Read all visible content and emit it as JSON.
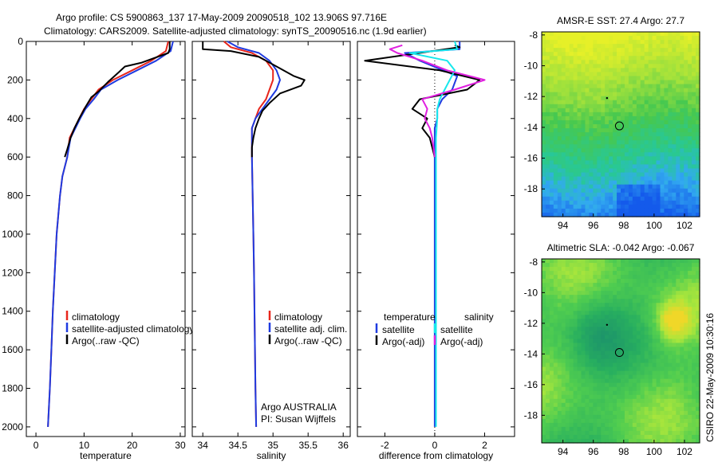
{
  "header": {
    "line1": "Argo profile: CS 5900863_137 17-May-2009 20090518_102 13.906S 97.716E",
    "line2": "Climatology: CARS2009. Satellite-adjusted climatology: synTS_20090516.nc (1.9d earlier)"
  },
  "side_label": "CSIRO 22-May-2009 10:30:16",
  "colors": {
    "red": "#e8261c",
    "blue": "#1f3be0",
    "black": "#000000",
    "cyan": "#18e8ec",
    "magenta": "#e020e0"
  },
  "chart_data": [
    {
      "type": "line",
      "id": "temperature",
      "xlabel": "temperature",
      "ylabel": "",
      "xlim": [
        -2,
        31
      ],
      "ylim": [
        2050,
        0
      ],
      "xticks": [
        0,
        10,
        20,
        30
      ],
      "yticks": [
        0,
        200,
        400,
        600,
        800,
        1000,
        1200,
        1400,
        1600,
        1800,
        2000
      ],
      "legend": [
        {
          "label": "climatology",
          "color": "#e8261c"
        },
        {
          "label": "satellite-adjusted climatology",
          "color": "#1f3be0"
        },
        {
          "label": "Argo(..raw -QC)",
          "color": "#000000"
        }
      ],
      "series": [
        {
          "name": "climatology",
          "color": "#e8261c",
          "x": [
            27.5,
            27,
            24,
            20,
            16,
            13,
            11.5,
            10,
            9,
            8,
            7,
            6.5,
            5.5,
            5,
            4.3,
            3.9,
            3.5,
            3.2,
            2.9,
            2.7,
            2.5
          ],
          "y": [
            0,
            50,
            100,
            150,
            200,
            250,
            300,
            350,
            400,
            450,
            500,
            600,
            700,
            800,
            1000,
            1200,
            1400,
            1600,
            1800,
            1900,
            2000
          ]
        },
        {
          "name": "satellite-adjusted climatology",
          "color": "#1f3be0",
          "x": [
            28.5,
            28,
            25,
            21,
            17,
            13.5,
            12,
            10.3,
            9.2,
            8.2,
            7.2,
            6.5,
            5.5,
            5,
            4.3,
            3.9,
            3.5,
            3.2,
            2.9,
            2.7,
            2.5
          ],
          "y": [
            0,
            50,
            100,
            150,
            200,
            250,
            300,
            350,
            400,
            450,
            500,
            600,
            700,
            800,
            1000,
            1200,
            1400,
            1600,
            1800,
            1900,
            2000
          ]
        },
        {
          "name": "Argo(..raw -QC)",
          "color": "#000000",
          "x": [
            27.8,
            27.8,
            27.5,
            22,
            18.5,
            17,
            15,
            13,
            11.5,
            10.3,
            9,
            8,
            7.2,
            6.5,
            6
          ],
          "y": [
            0,
            40,
            60,
            110,
            130,
            165,
            210,
            260,
            290,
            340,
            400,
            450,
            500,
            560,
            600
          ]
        }
      ]
    },
    {
      "type": "line",
      "id": "salinity",
      "xlabel": "salinity",
      "ylabel": "",
      "xlim": [
        33.85,
        36.1
      ],
      "ylim": [
        2050,
        0
      ],
      "xticks": [
        34,
        34.5,
        35,
        35.5,
        36
      ],
      "legend": [
        {
          "label": "climatology",
          "color": "#e8261c"
        },
        {
          "label": "satellite adj. clim.",
          "color": "#1f3be0"
        },
        {
          "label": "Argo(..raw -QC)",
          "color": "#000000"
        }
      ],
      "annotation": [
        "Argo AUSTRALIA",
        "PI: Susan Wijffels"
      ],
      "series": [
        {
          "name": "climatology",
          "color": "#e8261c",
          "x": [
            34.3,
            34.4,
            34.7,
            34.9,
            35.0,
            35.0,
            34.95,
            34.9,
            34.8,
            34.75,
            34.7,
            34.7,
            34.7,
            34.71,
            34.72,
            34.73,
            34.74,
            34.75,
            34.76
          ],
          "y": [
            0,
            30,
            60,
            100,
            150,
            200,
            250,
            300,
            350,
            400,
            450,
            500,
            600,
            800,
            1000,
            1200,
            1500,
            1800,
            2000
          ]
        },
        {
          "name": "satellite adj. clim.",
          "color": "#1f3be0",
          "x": [
            34.35,
            34.5,
            34.8,
            34.95,
            35.05,
            35.1,
            35.05,
            34.95,
            34.85,
            34.75,
            34.7,
            34.7,
            34.7,
            34.71,
            34.72,
            34.73,
            34.74,
            34.75,
            34.76
          ],
          "y": [
            0,
            30,
            60,
            100,
            150,
            200,
            250,
            300,
            350,
            400,
            450,
            500,
            600,
            800,
            1000,
            1200,
            1500,
            1800,
            2000
          ]
        },
        {
          "name": "Argo(..raw -QC)",
          "color": "#000000",
          "x": [
            34.0,
            34.0,
            34.0,
            34.4,
            34.8,
            35.1,
            35.3,
            35.45,
            35.4,
            35.1,
            34.95,
            34.85,
            34.8,
            34.75,
            34.72,
            34.7,
            34.7
          ],
          "y": [
            0,
            20,
            40,
            50,
            80,
            140,
            180,
            200,
            230,
            270,
            320,
            360,
            400,
            450,
            500,
            550,
            600
          ]
        }
      ]
    },
    {
      "type": "line",
      "id": "difference",
      "xlabel": "difference from climatology",
      "ylabel": "",
      "xlim": [
        -3.1,
        3.2
      ],
      "ylim": [
        2050,
        0
      ],
      "xticks": [
        -2,
        0,
        2
      ],
      "legend_groups": [
        {
          "title": "temperature",
          "items": [
            {
              "label": "satellite",
              "color": "#1f3be0"
            },
            {
              "label": "Argo(-adj)",
              "color": "#000000"
            }
          ]
        },
        {
          "title": "salinity",
          "items": [
            {
              "label": "satellite",
              "color": "#18e8ec"
            },
            {
              "label": "Argo(-adj)",
              "color": "#e020e0"
            }
          ]
        }
      ],
      "series": [
        {
          "name": "temperature satellite",
          "color": "#1f3be0",
          "x": [
            1.0,
            1.0,
            -1.2,
            -0.6,
            0.9,
            0.7,
            0.3,
            0.1,
            0.1,
            0.0,
            0.0,
            0.0,
            0.0,
            0.0,
            0.0,
            0.0,
            0.0
          ],
          "y": [
            0,
            40,
            60,
            100,
            180,
            250,
            300,
            350,
            400,
            450,
            500,
            600,
            800,
            1000,
            1400,
            1800,
            2000
          ]
        },
        {
          "name": "temperature Argo(-adj)",
          "color": "#000000",
          "x": [
            0.8,
            1.0,
            -2.8,
            0.2,
            1.8,
            1.3,
            -0.6,
            -0.9,
            -0.3,
            -0.5,
            -0.2,
            -0.1,
            0.0
          ],
          "y": [
            20,
            30,
            100,
            150,
            200,
            250,
            300,
            350,
            400,
            450,
            500,
            550,
            600
          ]
        },
        {
          "name": "salinity satellite",
          "color": "#18e8ec",
          "x": [
            0.8,
            0.9,
            -1.0,
            0.5,
            0.8,
            0.6,
            0.4,
            0.2,
            0.1,
            0.1,
            0.05,
            0.05,
            0.05,
            0.05,
            0.05,
            0.05,
            0.05
          ],
          "y": [
            0,
            40,
            60,
            100,
            150,
            200,
            250,
            300,
            350,
            400,
            500,
            600,
            800,
            1000,
            1400,
            1800,
            2000
          ]
        },
        {
          "name": "salinity Argo(-adj)",
          "color": "#e020e0",
          "x": [
            -1.3,
            -1.8,
            -1.5,
            -0.5,
            0.5,
            2.0,
            0.8,
            -0.5,
            -0.3,
            -0.4,
            -0.2,
            -0.1,
            0.0
          ],
          "y": [
            20,
            40,
            60,
            100,
            150,
            200,
            250,
            300,
            350,
            400,
            450,
            500,
            600
          ]
        }
      ]
    },
    {
      "type": "heatmap",
      "id": "sst-map",
      "title": "AMSR-E SST: 27.4 Argo: 27.7",
      "xticks": [
        94,
        96,
        98,
        100,
        102
      ],
      "yticks": [
        -8,
        -10,
        -12,
        -14,
        -16,
        -18
      ],
      "xlim": [
        92.6,
        103.0
      ],
      "ylim": [
        -19.8,
        -7.8
      ],
      "argo_position": {
        "lon": 97.716,
        "lat": -13.906
      }
    },
    {
      "type": "heatmap",
      "id": "sla-map",
      "title": "Altimetric SLA: -0.042 Argo: -0.067",
      "xticks": [
        94,
        96,
        98,
        100,
        102
      ],
      "yticks": [
        -8,
        -10,
        -12,
        -14,
        -16,
        -18
      ],
      "xlim": [
        92.6,
        103.0
      ],
      "ylim": [
        -19.8,
        -7.8
      ],
      "argo_position": {
        "lon": 97.716,
        "lat": -13.906
      }
    }
  ]
}
